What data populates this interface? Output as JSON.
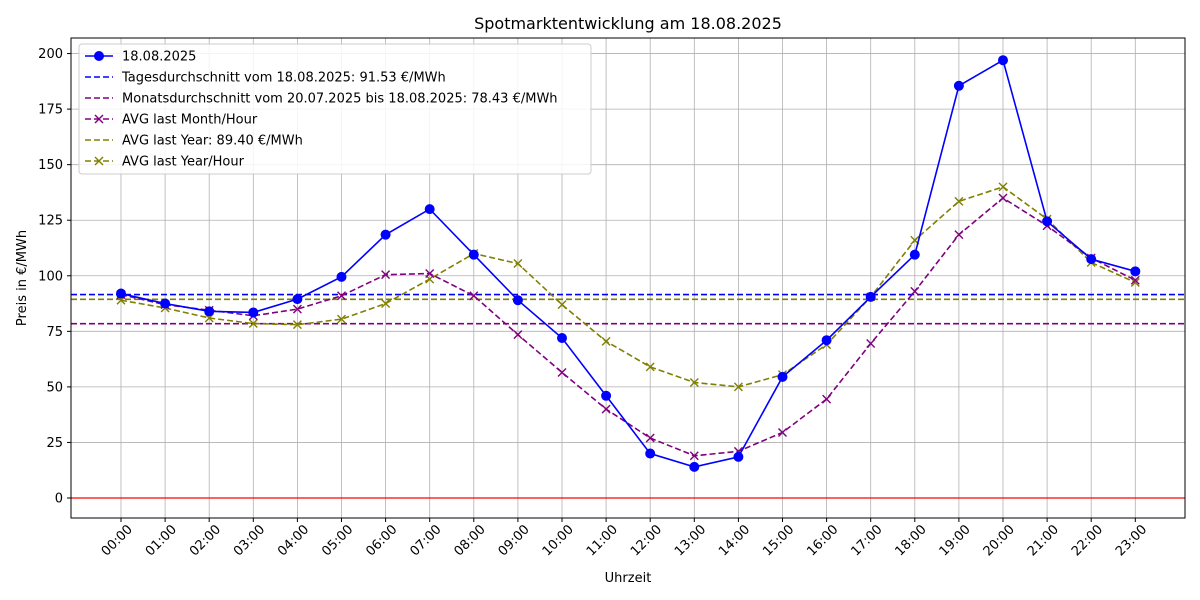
{
  "chart_data": {
    "type": "line",
    "title": "Spotmarktentwicklung am 18.08.2025",
    "xlabel": "Uhrzeit",
    "ylabel": "Preis in €/MWh",
    "ylim": [
      -9,
      207
    ],
    "yticks": [
      0,
      25,
      50,
      75,
      100,
      125,
      150,
      175,
      200
    ],
    "grid": true,
    "legend_position": "top-left",
    "categories": [
      "00:00",
      "01:00",
      "02:00",
      "03:00",
      "04:00",
      "05:00",
      "06:00",
      "07:00",
      "08:00",
      "09:00",
      "10:00",
      "11:00",
      "12:00",
      "13:00",
      "14:00",
      "15:00",
      "16:00",
      "17:00",
      "18:00",
      "19:00",
      "20:00",
      "21:00",
      "22:00",
      "23:00"
    ],
    "series": [
      {
        "name": "18.08.2025",
        "color": "#0000ff",
        "style": "solid",
        "marker": "circle",
        "values": [
          92,
          87.5,
          84,
          83.5,
          89.5,
          99.5,
          118.5,
          130,
          109.5,
          89,
          72,
          46,
          20,
          14,
          18.5,
          54.5,
          71,
          90.5,
          109.5,
          185.5,
          197,
          124.5,
          107.5,
          102
        ]
      },
      {
        "name": "Tagesdurchschnitt vom 18.08.2025: 91.53 €/MWh",
        "color": "#0000ff",
        "style": "dashed",
        "marker": "none",
        "hline": 91.53
      },
      {
        "name": "Monatsdurchschnitt vom 20.07.2025 bis 18.08.2025: 78.43 €/MWh",
        "color": "#800080",
        "style": "dashed",
        "marker": "none",
        "hline": 78.43
      },
      {
        "name": "AVG last Month/Hour",
        "color": "#800080",
        "style": "dashed",
        "marker": "x",
        "values": [
          91.5,
          87,
          84.5,
          82,
          85,
          91,
          100.5,
          101,
          91,
          73.5,
          56.5,
          40,
          27,
          19,
          21,
          29.5,
          44.5,
          69.5,
          93,
          118.5,
          135,
          122.5,
          108,
          98
        ]
      },
      {
        "name": "AVG last Year: 89.40 €/MWh",
        "color": "#808000",
        "style": "dashed",
        "marker": "none",
        "hline": 89.4
      },
      {
        "name": "AVG last Year/Hour",
        "color": "#808000",
        "style": "dashed",
        "marker": "x",
        "values": [
          89,
          85.5,
          81,
          78.5,
          78,
          80.5,
          87.5,
          98.5,
          110,
          105.5,
          87,
          70.5,
          59,
          52,
          50,
          55.5,
          69,
          90.5,
          116,
          133.5,
          140,
          125.5,
          106,
          97
        ]
      }
    ],
    "reference_line": {
      "value": 0,
      "color": "#ff0000"
    }
  }
}
